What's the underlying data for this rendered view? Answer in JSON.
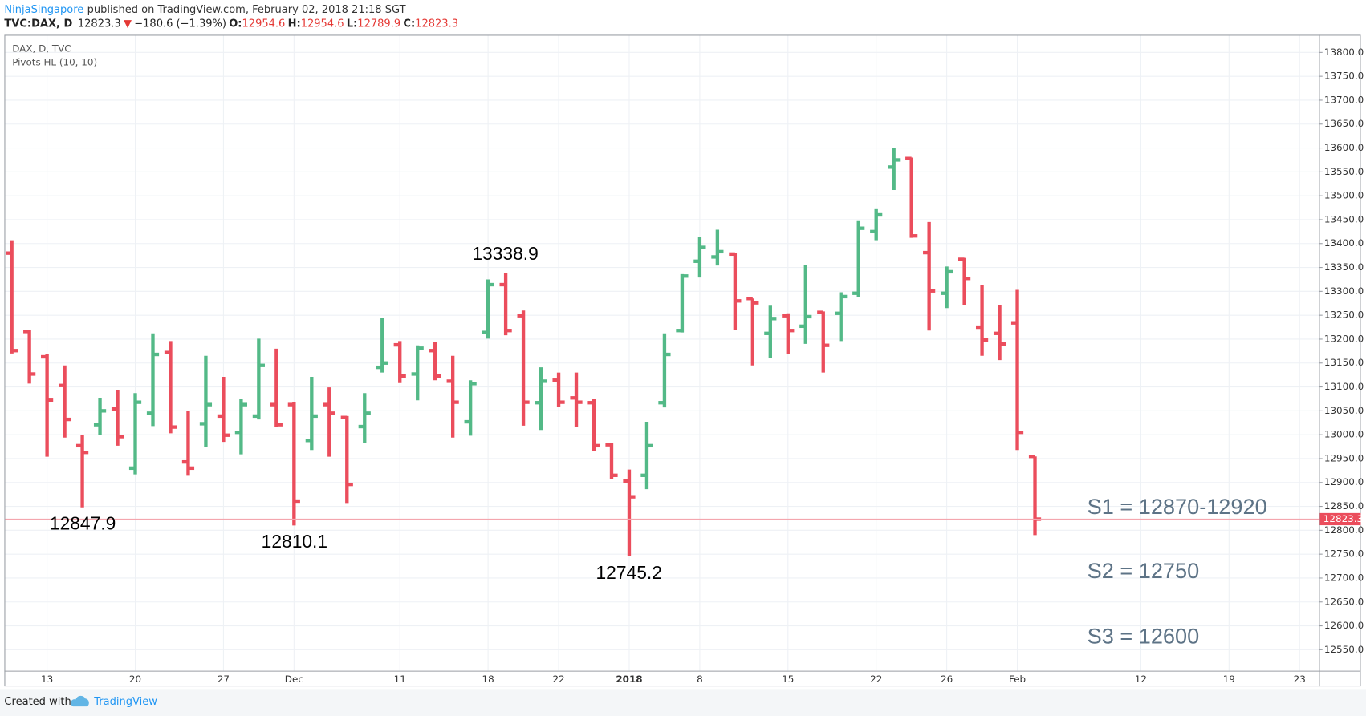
{
  "header": {
    "author": "NinjaSingapore",
    "published": "published on TradingView.com, February 02, 2018 21:18 SGT",
    "symbol": "TVC:DAX, D",
    "price": "12823.3",
    "arrow": "▼",
    "change": "−180.6 (−1.39%)",
    "ohlc": [
      {
        "label": "O:",
        "value": "12954.6"
      },
      {
        "label": "H:",
        "value": "12954.6"
      },
      {
        "label": "L:",
        "value": "12789.9"
      },
      {
        "label": "C:",
        "value": "12823.3"
      }
    ]
  },
  "chart_data": {
    "type": "ohlc",
    "title": "DAX, D, TVC",
    "indicator": "Pivots HL (10, 10)",
    "up_color": "#53b987",
    "down_color": "#eb4d5c",
    "grid": true,
    "categories": [
      "",
      "",
      "13",
      null,
      null,
      null,
      null,
      "20",
      null,
      null,
      null,
      null,
      "27",
      null,
      null,
      null,
      "Dec",
      null,
      null,
      null,
      null,
      null,
      "11",
      null,
      null,
      null,
      null,
      "18",
      null,
      null,
      null,
      "22",
      null,
      null,
      null,
      "2018",
      null,
      null,
      null,
      "8",
      null,
      null,
      null,
      null,
      "15",
      null,
      null,
      null,
      null,
      "22",
      null,
      null,
      null,
      "26",
      null,
      null,
      null,
      "Feb",
      null,
      null,
      null,
      null,
      null,
      null,
      "12",
      null,
      null,
      null,
      null,
      "19",
      null,
      null,
      null,
      "23"
    ],
    "open": [
      13380,
      13216,
      13163,
      13103,
      12977,
      13021,
      13054,
      12930,
      13045,
      13172,
      12943,
      13023,
      13039,
      13005,
      13039,
      13063,
      13063,
      12988,
      13063,
      13036,
      13017,
      13141,
      13188,
      13127,
      13176,
      13112,
      13027,
      13214,
      13314,
      13249,
      13067,
      13114,
      13077,
      13067,
      12979,
      12903,
      12915,
      13067,
      13218,
      13363,
      13372,
      13378,
      13285,
      13212,
      13249,
      13227,
      13256,
      13254,
      13296,
      13425,
      13560,
      13578,
      13381,
      13296,
      13367,
      13225,
      13212,
      13234,
      12954.6,
      null,
      null,
      null,
      null,
      null,
      null,
      null,
      null,
      null,
      null,
      null,
      null,
      null,
      null,
      null
    ],
    "high": [
      13407,
      13219,
      13168,
      13145,
      13000,
      13076,
      13094,
      13087,
      13212,
      13196,
      13050,
      13165,
      13121,
      13074,
      13201,
      13180,
      13068,
      13121,
      13099,
      13039,
      13087,
      13245,
      13196,
      13187,
      13194,
      13165,
      13114,
      13325,
      13338.9,
      13260,
      13141,
      13130,
      13130,
      13074,
      12983,
      12927,
      13027,
      13212,
      13336,
      13414,
      13429,
      13381,
      13285,
      13270,
      13254,
      13356,
      13258,
      13298,
      13447,
      13472,
      13600,
      13580,
      13445,
      13352,
      13370,
      13314,
      13272,
      13303,
      12954.6,
      null,
      null,
      null,
      null,
      null,
      null,
      null,
      null,
      null,
      null,
      null,
      null,
      null,
      null,
      null
    ],
    "low": [
      13170,
      13107,
      12954,
      12994,
      12847.9,
      13000,
      12977,
      12917,
      13018,
      13003,
      12914,
      12974,
      12985,
      12959,
      13032,
      13016,
      12810.1,
      12968,
      12954,
      12857,
      12983,
      13130,
      13108,
      13072,
      13114,
      12994,
      12998,
      13201,
      13208,
      13019,
      13010,
      13059,
      13016,
      12965,
      12908,
      12745.2,
      12886,
      13057,
      13214,
      13329,
      13354,
      13220,
      13145,
      13161,
      13169,
      13190,
      13130,
      13196,
      13288,
      13407,
      13512,
      13412,
      13218,
      13265,
      13272,
      13165,
      13156,
      12968,
      12789.9,
      null,
      null,
      null,
      null,
      null,
      null,
      null,
      null,
      null,
      null,
      null,
      null,
      null,
      null,
      null
    ],
    "close": [
      13176,
      13127,
      13072,
      13032,
      12963,
      13050,
      12996,
      13068,
      13168,
      13016,
      12930,
      13063,
      12999,
      13063,
      13145,
      13021,
      12861,
      13039,
      13045,
      12896,
      13045,
      13150,
      13123,
      13181,
      13123,
      13068,
      13107,
      13314,
      13218,
      13068,
      13112,
      13068,
      13068,
      12977,
      12915,
      12870,
      12977,
      13168,
      13332,
      13392,
      13383,
      13280,
      13276,
      13243,
      13218,
      13247,
      13187,
      13289,
      13432,
      13460,
      13575,
      13416,
      13301,
      13341,
      13327,
      13198,
      13190,
      13005,
      12823.3,
      null,
      null,
      null,
      null,
      null,
      null,
      null,
      null,
      null,
      null,
      null,
      null,
      null,
      null,
      null
    ],
    "last_price": 12823.3,
    "ylim": [
      12506,
      13835
    ],
    "yticks": [
      {
        "value": 12550,
        "label": "12550.0"
      },
      {
        "value": 12600,
        "label": "12600.0"
      },
      {
        "value": 12650,
        "label": "12650.0"
      },
      {
        "value": 12700,
        "label": "12700.0"
      },
      {
        "value": 12750,
        "label": "12750.0"
      },
      {
        "value": 12800,
        "label": "12800.0"
      },
      {
        "value": 12850,
        "label": "12850.0"
      },
      {
        "value": 12900,
        "label": "12900.0"
      },
      {
        "value": 12950,
        "label": "12950.0"
      },
      {
        "value": 13000,
        "label": "13000.0"
      },
      {
        "value": 13050,
        "label": "13050.0"
      },
      {
        "value": 13100,
        "label": "13100.0"
      },
      {
        "value": 13150,
        "label": "13150.0"
      },
      {
        "value": 13200,
        "label": "13200.0"
      },
      {
        "value": 13250,
        "label": "13250.0"
      },
      {
        "value": 13300,
        "label": "13300.0"
      },
      {
        "value": 13350,
        "label": "13350.0"
      },
      {
        "value": 13400,
        "label": "13400.0"
      },
      {
        "value": 13450,
        "label": "13450.0"
      },
      {
        "value": 13500,
        "label": "13500.0"
      },
      {
        "value": 13550,
        "label": "13550.0"
      },
      {
        "value": 13600,
        "label": "13600.0"
      },
      {
        "value": 13650,
        "label": "13650.0"
      },
      {
        "value": 13700,
        "label": "13700.0"
      },
      {
        "value": 13750,
        "label": "13750.0"
      },
      {
        "value": 13800,
        "label": "13800.0"
      }
    ],
    "annotations": [
      "13338.9",
      "12847.9",
      "12810.1",
      "12745.2",
      "S1 = 12870-12920",
      "S2 = 12750",
      "S3 = 12600"
    ]
  },
  "footer": {
    "text": "Created with",
    "brand": "TradingView"
  }
}
